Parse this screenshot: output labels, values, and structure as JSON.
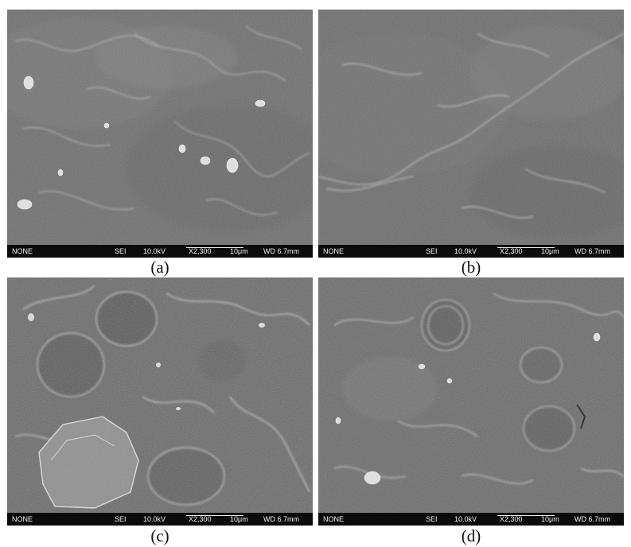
{
  "panels": [
    {
      "caption": "(a)",
      "databar": {
        "detector_mode": "NONE",
        "signal": "SEI",
        "voltage": "10.0kV",
        "magnification": "X2,300",
        "scale": "10μm",
        "working_distance": "WD 6.7mm"
      }
    },
    {
      "caption": "(b)",
      "databar": {
        "detector_mode": "NONE",
        "signal": "SEI",
        "voltage": "10.0kV",
        "magnification": "X2,300",
        "scale": "10μm",
        "working_distance": "WD 6.7mm"
      }
    },
    {
      "caption": "(c)",
      "databar": {
        "detector_mode": "NONE",
        "signal": "SEI",
        "voltage": "10.0kV",
        "magnification": "X2,300",
        "scale": "10μm",
        "working_distance": "WD 6.7mm"
      }
    },
    {
      "caption": "(d)",
      "databar": {
        "detector_mode": "NONE",
        "signal": "SEI",
        "voltage": "10.0kV",
        "magnification": "X2,300",
        "scale": "10μm",
        "working_distance": "WD 6.7mm"
      }
    }
  ],
  "colors": {
    "sem_base": "#6f6f6f",
    "databar_bg": "#0b0b0b",
    "databar_text": "#f2f2f2",
    "caption_text": "#111111"
  }
}
